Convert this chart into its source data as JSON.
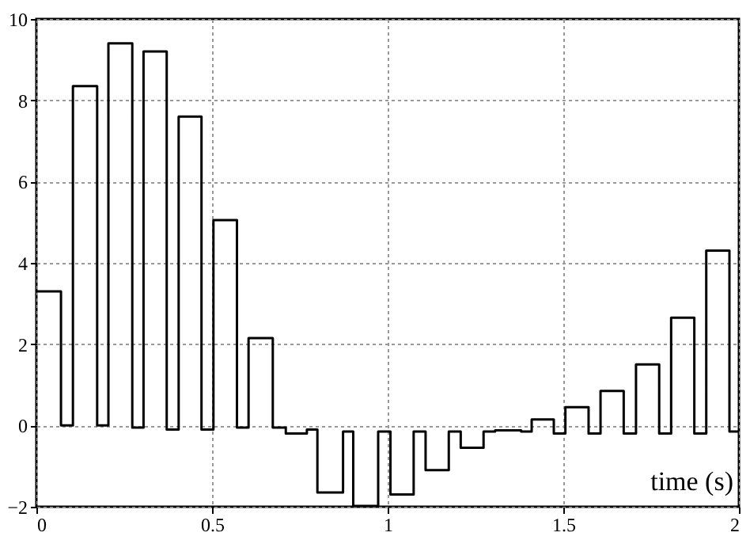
{
  "chart_data": {
    "type": "step",
    "xlabel": "time (s)",
    "x": [
      0,
      0.07,
      0.104,
      0.173,
      0.205,
      0.273,
      0.305,
      0.371,
      0.405,
      0.47,
      0.504,
      0.571,
      0.604,
      0.673,
      0.71,
      0.77,
      0.8,
      0.873,
      0.902,
      0.973,
      1.008,
      1.074,
      1.108,
      1.174,
      1.208,
      1.273,
      1.306,
      1.38,
      1.41,
      1.473,
      1.506,
      1.572,
      1.606,
      1.672,
      1.707,
      1.773,
      1.807,
      1.873,
      1.907,
      1.973,
      2
    ],
    "series": [
      {
        "color": "#000000",
        "values": [
          3.3,
          0,
          8.35,
          0,
          9.4,
          -0.05,
          9.2,
          -0.1,
          7.6,
          -0.1,
          5.05,
          -0.05,
          2.15,
          -0.05,
          -0.2,
          -0.1,
          -1.65,
          -0.15,
          -1.98,
          -0.15,
          -1.7,
          -0.15,
          -1.1,
          -0.15,
          -0.55,
          -0.15,
          -0.12,
          -0.15,
          0.15,
          -0.2,
          0.45,
          -0.2,
          0.85,
          -0.2,
          1.5,
          -0.2,
          2.65,
          -0.2,
          4.3,
          -0.15,
          -0.15
        ]
      }
    ],
    "xlim": [
      0,
      2
    ],
    "xticks": [
      0,
      0.5,
      1,
      1.5,
      2
    ],
    "ylim": [
      -2,
      10
    ],
    "yticks": [
      -2,
      0,
      2,
      4,
      6,
      8,
      10
    ],
    "grid": true,
    "line_style": "solid",
    "marker": "none"
  }
}
